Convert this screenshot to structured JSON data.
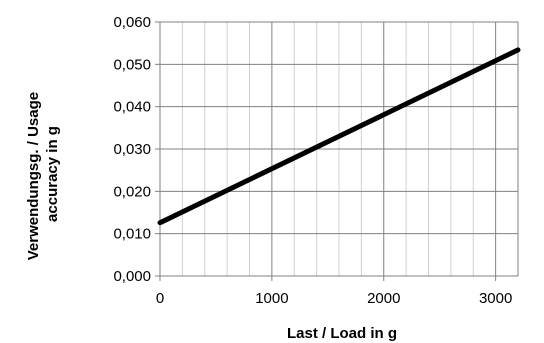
{
  "chart_data": {
    "type": "line",
    "title": "",
    "xlabel": "Last / Load in g",
    "ylabel_lines": [
      "Verwendungsg. / Usage",
      "accuracy in g"
    ],
    "xlim": [
      0,
      3200
    ],
    "ylim": [
      0,
      0.06
    ],
    "x_ticks": [
      0,
      1000,
      2000,
      3000
    ],
    "x_tick_labels": [
      "0",
      "1000",
      "2000",
      "3000"
    ],
    "y_ticks": [
      0,
      0.01,
      0.02,
      0.03,
      0.04,
      0.05,
      0.06
    ],
    "y_tick_labels": [
      "0,000",
      "0,010",
      "0,020",
      "0,030",
      "0,040",
      "0,050",
      "0,060"
    ],
    "x_minor_step": 200,
    "grid": true,
    "series": [
      {
        "x": [
          0,
          3200
        ],
        "y": [
          0.0126,
          0.0534
        ]
      }
    ],
    "colors": {
      "line": "#000000",
      "major_grid": "#808080",
      "minor_grid": "#d0d0d0",
      "axis": "#808080"
    }
  }
}
